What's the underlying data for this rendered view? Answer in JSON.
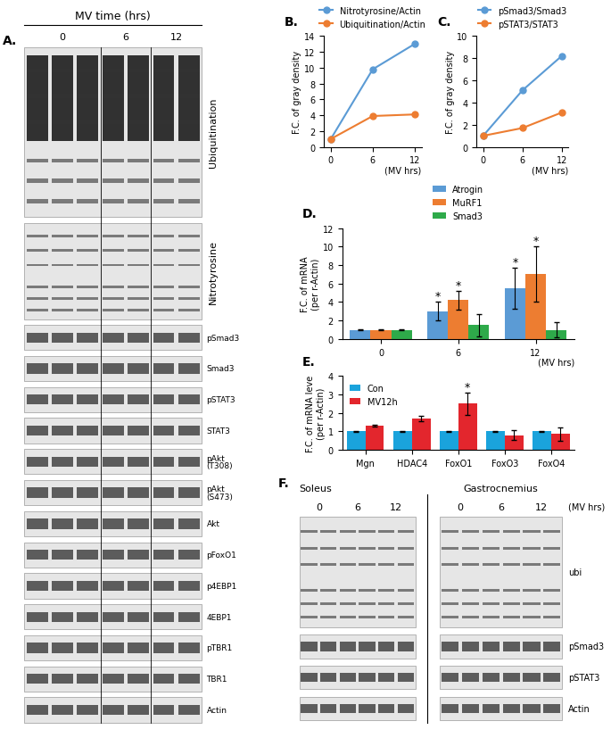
{
  "blots": [
    {
      "panel_label": "A.",
      "header": "MV time (hrs)",
      "lane_groups": [
        "0",
        "6",
        "12"
      ],
      "rows": [
        "Ubiquitination",
        "Nitrotyrosine",
        "pSmad3",
        "Smad3",
        "pSTAT3",
        "STAT3",
        "pAkt\n(T308)",
        "pAkt\n(S473)",
        "Akt",
        "pFoxO1",
        "p4EBP1",
        "4EBP1",
        "pTBR1",
        "TBR1",
        "Actin"
      ]
    },
    {
      "panel_label": "F.",
      "header": "(MV hrs)",
      "tissues": [
        {
          "name": "Soleus",
          "lane_groups": [
            "0",
            "6",
            "12"
          ]
        },
        {
          "name": "Gastrocnemius",
          "lane_groups": [
            "0",
            "6",
            "12"
          ]
        }
      ],
      "rows": [
        "ubi",
        "pSmad3",
        "pSTAT3",
        "Actin"
      ]
    }
  ],
  "chart_data": [
    {
      "panel_label": "B.",
      "type": "line",
      "x": [
        0,
        6,
        12
      ],
      "x_label": "(MV hrs)",
      "y_label": "F.C. of gray density",
      "xlim": [
        -1,
        13
      ],
      "xticks": [
        0,
        6,
        12
      ],
      "ylim": [
        0,
        14
      ],
      "yticks": [
        0,
        2,
        4,
        6,
        8,
        10,
        12,
        14
      ],
      "legend": "top",
      "marker": "o",
      "series": [
        {
          "name": "Nitrotyrosine/Actin",
          "color": "#5b9bd5",
          "values": [
            1,
            9.8,
            13
          ]
        },
        {
          "name": "Ubiquitination/Actin",
          "color": "#ed7d31",
          "values": [
            1,
            3.9,
            4.1
          ]
        }
      ]
    },
    {
      "panel_label": "C.",
      "type": "line",
      "x": [
        0,
        6,
        12
      ],
      "x_label": "(MV hrs)",
      "y_label": "F.C. of gray density",
      "xlim": [
        -1,
        13
      ],
      "xticks": [
        0,
        6,
        12
      ],
      "ylim": [
        0,
        10
      ],
      "yticks": [
        0,
        2,
        4,
        6,
        8,
        10
      ],
      "legend": "top",
      "marker": "o",
      "series": [
        {
          "name": "pSmad3/Smad3",
          "color": "#5b9bd5",
          "values": [
            1,
            5.1,
            8.2
          ]
        },
        {
          "name": "pSTAT3/STAT3",
          "color": "#ed7d31",
          "values": [
            1,
            1.7,
            3.1
          ]
        }
      ]
    },
    {
      "panel_label": "D.",
      "type": "bar",
      "categories": [
        "0",
        "6",
        "12"
      ],
      "x_label": "(MV hrs)",
      "y_label": "F.C. of mRNA\n(per r-Actin)",
      "ylim": [
        0,
        12
      ],
      "yticks": [
        0,
        2,
        4,
        6,
        8,
        10,
        12
      ],
      "legend": "top",
      "series": [
        {
          "name": "Atrogin",
          "color": "#5b9bd5",
          "values": [
            1,
            3,
            5.5
          ],
          "errors": [
            0.05,
            1,
            2.2
          ]
        },
        {
          "name": "MuRF1",
          "color": "#ed7d31",
          "values": [
            1,
            4.2,
            7
          ],
          "errors": [
            0.05,
            1,
            3
          ]
        },
        {
          "name": "Smad3",
          "color": "#2eaa4a",
          "values": [
            1,
            1.5,
            1
          ],
          "errors": [
            0.05,
            1.2,
            0.8
          ]
        }
      ],
      "annotations": [
        {
          "series": "Atrogin",
          "category": "6",
          "text": "*"
        },
        {
          "series": "MuRF1",
          "category": "6",
          "text": "*"
        },
        {
          "series": "Atrogin",
          "category": "12",
          "text": "*"
        },
        {
          "series": "MuRF1",
          "category": "12",
          "text": "*"
        }
      ]
    },
    {
      "panel_label": "E.",
      "type": "bar",
      "categories": [
        "Mgn",
        "HDAC4",
        "FoxO1",
        "FoxO3",
        "FoxO4"
      ],
      "y_label": "F.C. of mRNA leve\n(per r-Actin)",
      "ylim": [
        0,
        4
      ],
      "yticks": [
        0,
        1,
        2,
        3,
        4
      ],
      "legend": "upper left",
      "series": [
        {
          "name": "Con",
          "color": "#1aa3dc",
          "values": [
            1,
            1,
            1,
            1,
            1
          ],
          "errors": [
            0.02,
            0.02,
            0.02,
            0.02,
            0.02
          ]
        },
        {
          "name": "MV12h",
          "color": "#e3262d",
          "values": [
            1.3,
            1.7,
            2.5,
            0.8,
            0.85
          ],
          "errors": [
            0.05,
            0.15,
            0.6,
            0.25,
            0.35
          ]
        }
      ],
      "annotations": [
        {
          "series": "MV12h",
          "category": "FoxO1",
          "text": "*"
        }
      ]
    }
  ]
}
